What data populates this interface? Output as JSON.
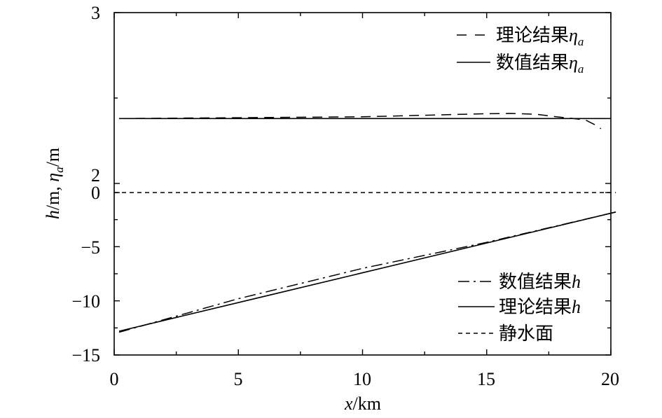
{
  "chart_data": {
    "type": "line",
    "xlabel": "x/km",
    "ylabel": "h/m, η_a/m",
    "xlim": [
      0,
      20
    ],
    "x_ticks": [
      "0",
      "5",
      "10",
      "15",
      "20"
    ],
    "y_ticks_upper": [
      "3",
      "2"
    ],
    "y_ticks_lower": [
      "0",
      "−5",
      "−10",
      "−15"
    ],
    "y_break": "broken y-axis: lower segment −15 to 0 m, upper segment 2 to 3 m",
    "ylim_lower": [
      -15,
      0
    ],
    "ylim_upper": [
      2,
      3
    ],
    "legend_top": {
      "placement": "top-right",
      "entries": [
        {
          "label": "理论结果",
          "symbol": "η",
          "subscript": "a",
          "style": "dashed"
        },
        {
          "label": "数值结果",
          "symbol": "η",
          "subscript": "a",
          "style": "solid"
        }
      ]
    },
    "legend_bottom": {
      "placement": "bottom-right",
      "entries": [
        {
          "label": "数值结果",
          "symbol": "h",
          "style": "dashdot"
        },
        {
          "label": "理论结果",
          "symbol": "h",
          "style": "solid"
        },
        {
          "label": "静水面",
          "symbol": "",
          "style": "short-dashed"
        }
      ]
    },
    "series": [
      {
        "panel": "upper",
        "style": "dashed",
        "x": [
          0.2,
          5,
          10,
          15,
          16,
          17,
          17.8,
          18.5,
          19,
          19.4,
          19.6
        ],
        "y": [
          2.38,
          2.385,
          2.39,
          2.408,
          2.41,
          2.405,
          2.39,
          2.38,
          2.37,
          2.34,
          2.32
        ]
      },
      {
        "panel": "upper",
        "style": "solid",
        "x": [
          0.2,
          20
        ],
        "y": [
          2.38,
          2.38
        ]
      },
      {
        "panel": "lower",
        "style": "dashdot",
        "x": [
          0.2,
          5,
          10,
          15,
          20.2
        ],
        "y": [
          -12.9,
          -9.8,
          -7.0,
          -4.6,
          -1.8
        ]
      },
      {
        "panel": "lower",
        "style": "solid",
        "x": [
          0.2,
          20.2
        ],
        "y": [
          -12.8,
          -1.8
        ]
      },
      {
        "panel": "lower",
        "style": "short-dashed",
        "x": [
          0,
          20.2
        ],
        "y": [
          0,
          0
        ]
      }
    ]
  }
}
